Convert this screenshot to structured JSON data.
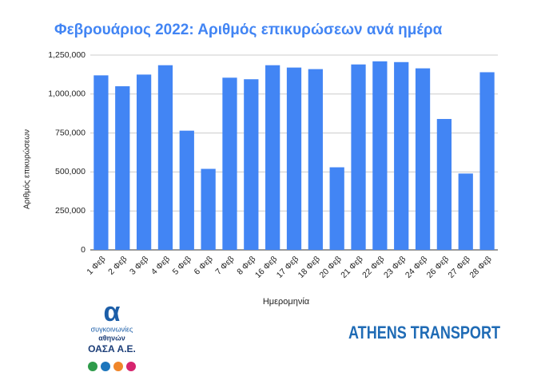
{
  "chart_data": {
    "type": "bar",
    "title": "Φεβρουάριος 2022: Αριθμός επικυρώσεων ανά ημέρα",
    "x_label": "Ημερομηνία",
    "y_label": "Αριθμός επικυρώσεων",
    "categories": [
      "1 Φεβ",
      "2 Φεβ",
      "3 Φεβ",
      "4 Φεβ",
      "5 Φεβ",
      "6 Φεβ",
      "7 Φεβ",
      "8 Φεβ",
      "16 Φεβ",
      "17 Φεβ",
      "18 Φεβ",
      "20 Φεβ",
      "21 Φεβ",
      "22 Φεβ",
      "23 Φεβ",
      "24 Φεβ",
      "26 Φεβ",
      "27 Φεβ",
      "28 Φεβ"
    ],
    "values": [
      1120000,
      1050000,
      1125000,
      1185000,
      765000,
      520000,
      1105000,
      1095000,
      1185000,
      1170000,
      1160000,
      530000,
      1190000,
      1210000,
      1205000,
      1165000,
      840000,
      490000,
      1140000
    ],
    "color": "#4285f4",
    "ylim": [
      0,
      1250000
    ],
    "yticks": [
      0,
      {
        "value": 250000,
        "label": "250,000"
      },
      {
        "value": 500000,
        "label": "500,000"
      },
      {
        "value": 750000,
        "label": "750,000"
      },
      {
        "value": 1000000,
        "label": "1,000,000"
      },
      {
        "value": 1250000,
        "label": "1,250,000"
      }
    ],
    "grid": true
  },
  "branding": {
    "logo_mark": "α",
    "agency_line1": "συγκοινωνίες",
    "agency_line2": "αθηνών",
    "agency_name": "ΟΑΣΑ Α.Ε.",
    "brand": "ATHENS TRANSPORT"
  }
}
